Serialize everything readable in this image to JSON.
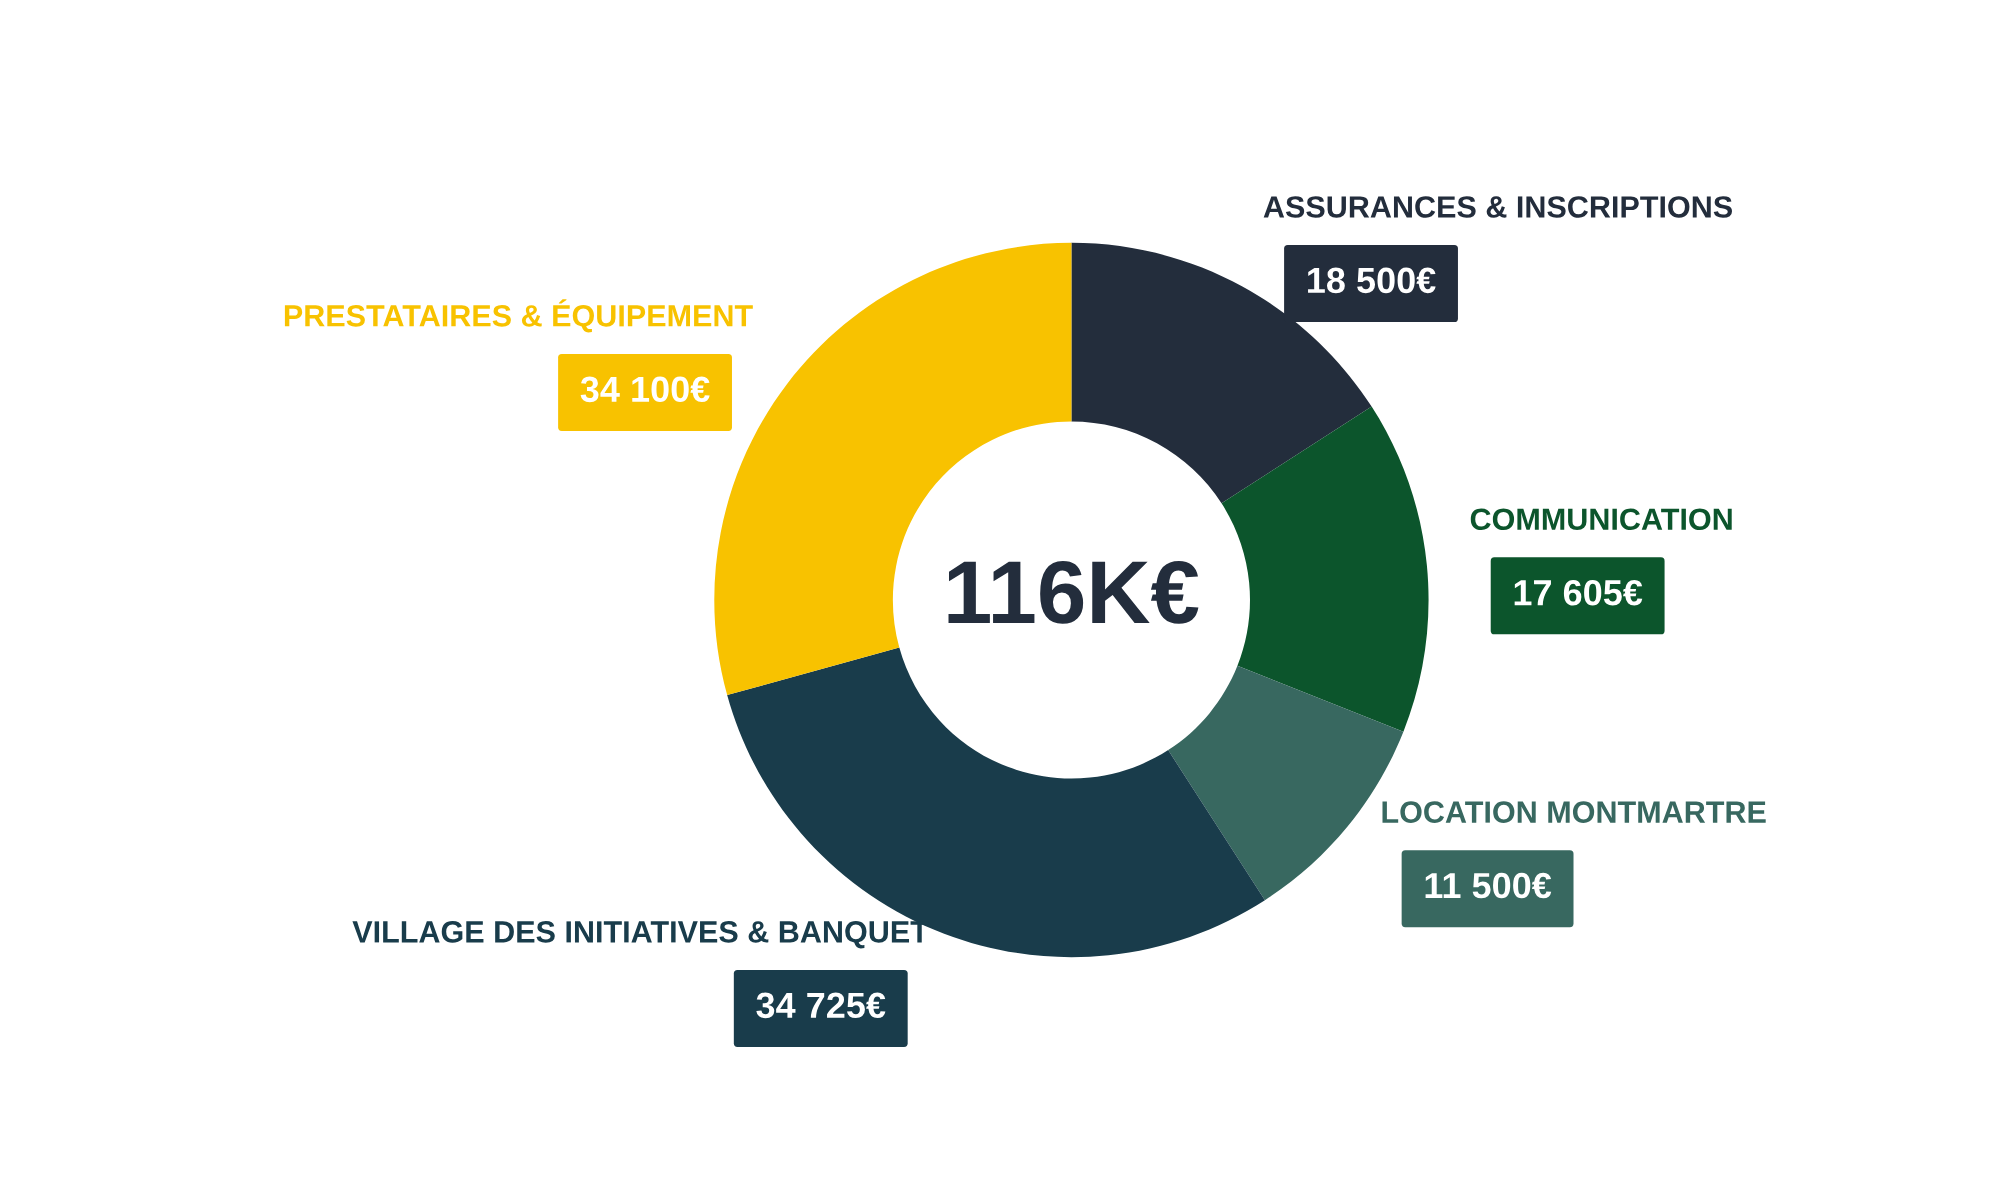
{
  "chart_data": {
    "type": "donut",
    "categories": [
      "ASSURANCES & INSCRIPTIONS",
      "COMMUNICATION",
      "LOCATION MONTMARTRE",
      "VILLAGE DES INITIATIVES & BANQUET",
      "PRESTATAIRES & ÉQUIPEMENT"
    ],
    "values": [
      18500,
      17605,
      11500,
      34725,
      34100
    ],
    "value_labels": [
      "18 500€",
      "17 605€",
      "11 500€",
      "34 725€",
      "34 100€"
    ],
    "colors": [
      "#232d3c",
      "#0c552c",
      "#386860",
      "#193c4b",
      "#f8c200"
    ],
    "annotations": [
      "116K€"
    ]
  }
}
